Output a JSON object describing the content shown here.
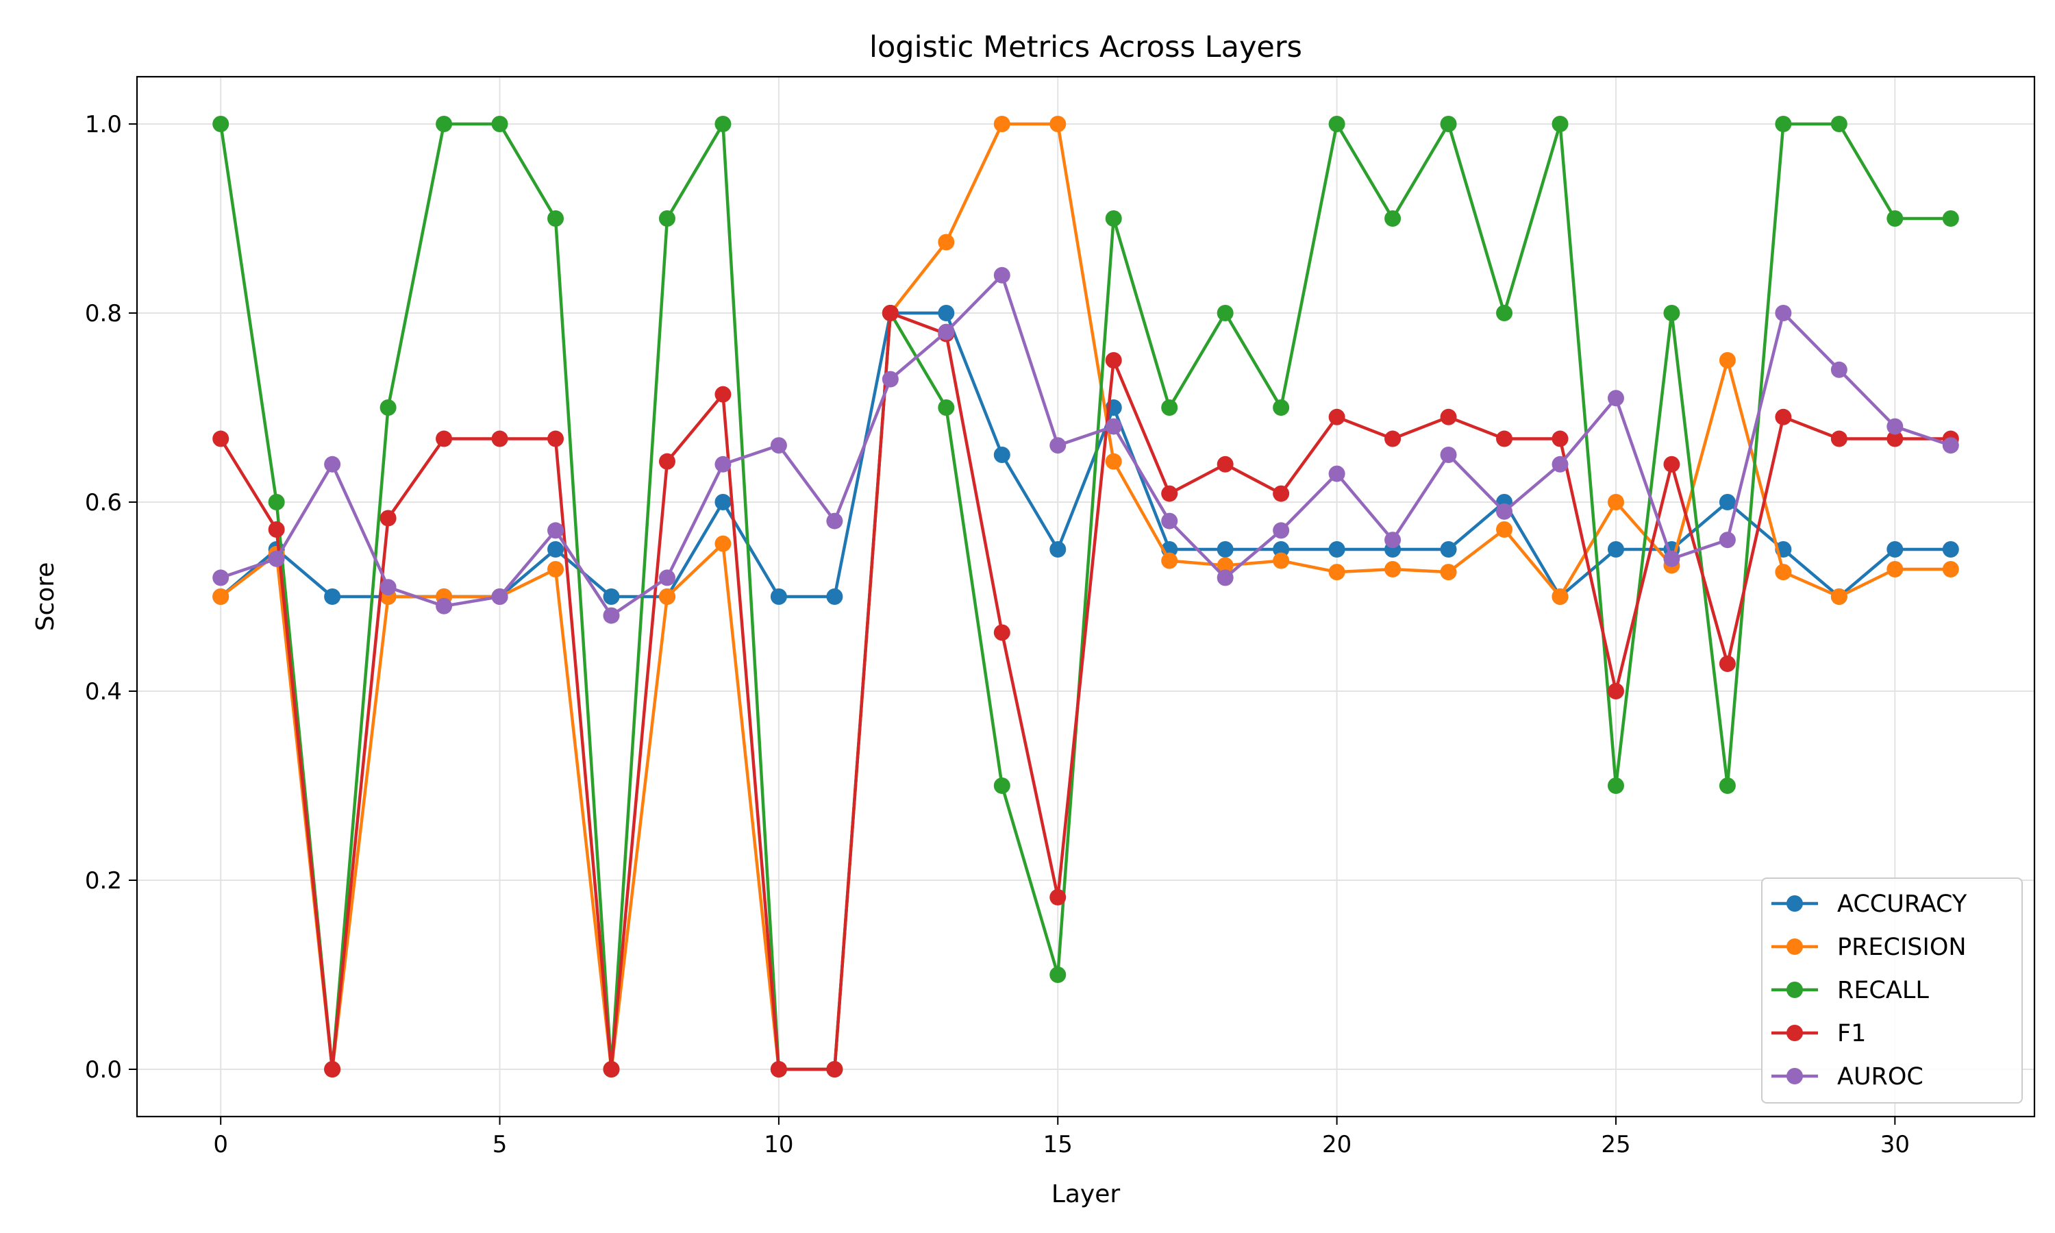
{
  "chart_data": {
    "type": "line",
    "title": "logistic Metrics Across Layers",
    "xlabel": "Layer",
    "ylabel": "Score",
    "xlim": [
      -1.5,
      32.5
    ],
    "ylim": [
      -0.05,
      1.05
    ],
    "x_ticks": [
      0,
      5,
      10,
      15,
      20,
      25,
      30
    ],
    "y_ticks": [
      0.0,
      0.2,
      0.4,
      0.6,
      0.8,
      1.0
    ],
    "y_tick_labels": [
      "0.0",
      "0.2",
      "0.4",
      "0.6",
      "0.8",
      "1.0"
    ],
    "grid": true,
    "legend_position": "lower-right",
    "x": [
      0,
      1,
      2,
      3,
      4,
      5,
      6,
      7,
      8,
      9,
      10,
      11,
      12,
      13,
      14,
      15,
      16,
      17,
      18,
      19,
      20,
      21,
      22,
      23,
      24,
      25,
      26,
      27,
      28,
      29,
      30,
      31
    ],
    "series": [
      {
        "name": "ACCURACY",
        "color": "#1f77b4",
        "values": [
          0.5,
          0.55,
          0.5,
          0.5,
          0.5,
          0.5,
          0.55,
          0.5,
          0.5,
          0.6,
          0.5,
          0.5,
          0.8,
          0.8,
          0.65,
          0.55,
          0.7,
          0.55,
          0.55,
          0.55,
          0.55,
          0.55,
          0.55,
          0.6,
          0.5,
          0.55,
          0.55,
          0.6,
          0.55,
          0.5,
          0.55,
          0.55
        ]
      },
      {
        "name": "PRECISION",
        "color": "#ff7f0e",
        "values": [
          0.5,
          0.545,
          0.0,
          0.5,
          0.5,
          0.5,
          0.529,
          0.0,
          0.5,
          0.556,
          0.0,
          0.0,
          0.8,
          0.875,
          1.0,
          1.0,
          0.643,
          0.538,
          0.533,
          0.538,
          0.526,
          0.529,
          0.526,
          0.571,
          0.5,
          0.6,
          0.533,
          0.75,
          0.526,
          0.5,
          0.529,
          0.529
        ]
      },
      {
        "name": "RECALL",
        "color": "#2ca02c",
        "values": [
          1.0,
          0.6,
          0.0,
          0.7,
          1.0,
          1.0,
          0.9,
          0.0,
          0.9,
          1.0,
          0.0,
          0.0,
          0.8,
          0.7,
          0.3,
          0.1,
          0.9,
          0.7,
          0.8,
          0.7,
          1.0,
          0.9,
          1.0,
          0.8,
          1.0,
          0.3,
          0.8,
          0.3,
          1.0,
          1.0,
          0.9,
          0.9
        ]
      },
      {
        "name": "F1",
        "color": "#d62728",
        "values": [
          0.667,
          0.571,
          0.0,
          0.583,
          0.667,
          0.667,
          0.667,
          0.0,
          0.643,
          0.714,
          0.0,
          0.0,
          0.8,
          0.778,
          0.462,
          0.182,
          0.75,
          0.609,
          0.64,
          0.609,
          0.69,
          0.667,
          0.69,
          0.667,
          0.667,
          0.4,
          0.64,
          0.429,
          0.69,
          0.667,
          0.667,
          0.667
        ]
      },
      {
        "name": "AUROC",
        "color": "#9467bd",
        "values": [
          0.52,
          0.54,
          0.64,
          0.51,
          0.49,
          0.5,
          0.57,
          0.48,
          0.52,
          0.64,
          0.66,
          0.58,
          0.73,
          0.78,
          0.84,
          0.66,
          0.68,
          0.58,
          0.52,
          0.57,
          0.63,
          0.56,
          0.65,
          0.59,
          0.64,
          0.71,
          0.54,
          0.56,
          0.8,
          0.74,
          0.68,
          0.66
        ]
      }
    ]
  }
}
